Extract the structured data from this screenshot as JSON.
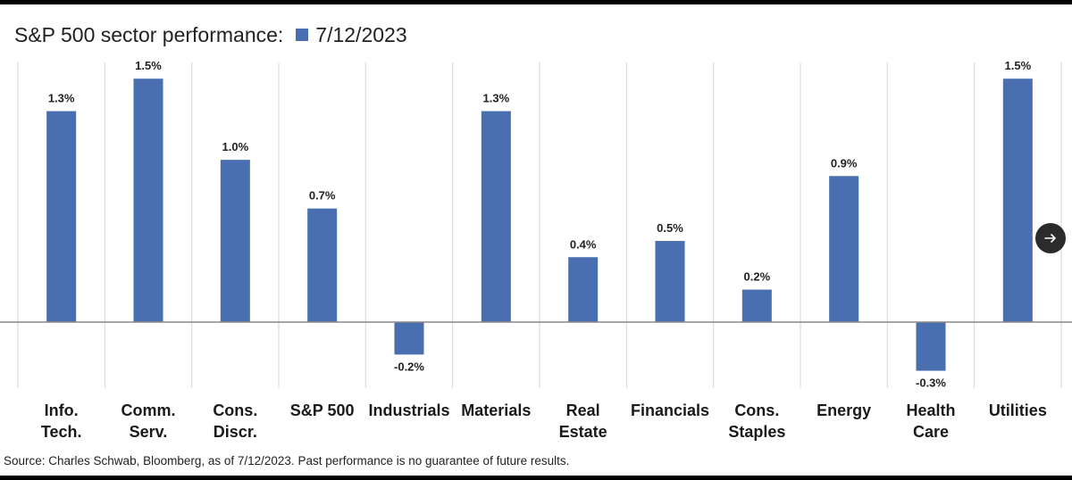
{
  "title": "S&P 500 sector performance:",
  "legend_label": "7/12/2023",
  "source": "Source: Charles Schwab, Bloomberg, as of 7/12/2023. Past performance is no guarantee of future results.",
  "nav_icon": "arrow-right-icon",
  "colors": {
    "bar": "#4a6fb0",
    "grid": "#d6d6d6",
    "baseline": "#8a8a8a"
  },
  "chart_data": {
    "type": "bar",
    "categories": [
      [
        "Info.",
        "Tech."
      ],
      [
        "Comm.",
        "Serv."
      ],
      [
        "Cons.",
        "Discr."
      ],
      [
        "S&P 500"
      ],
      [
        "Industrials"
      ],
      [
        "Materials"
      ],
      [
        "Real",
        "Estate"
      ],
      [
        "Financials"
      ],
      [
        "Cons.",
        "Staples"
      ],
      [
        "Energy"
      ],
      [
        "Health",
        "Care"
      ],
      [
        "Utilities"
      ]
    ],
    "series": [
      {
        "name": "7/12/2023",
        "values": [
          1.3,
          1.5,
          1.0,
          0.7,
          -0.2,
          1.3,
          0.4,
          0.5,
          0.2,
          0.9,
          -0.3,
          1.5
        ],
        "labels": [
          "1.3%",
          "1.5%",
          "1.0%",
          "0.7%",
          "-0.2%",
          "1.3%",
          "0.4%",
          "0.5%",
          "0.2%",
          "0.9%",
          "-0.3%",
          "1.5%"
        ]
      }
    ],
    "title": "S&P 500 sector performance:",
    "legend_placement": "top-left",
    "grid": "vertical separators",
    "ylim": [
      -0.43,
      1.6
    ]
  }
}
